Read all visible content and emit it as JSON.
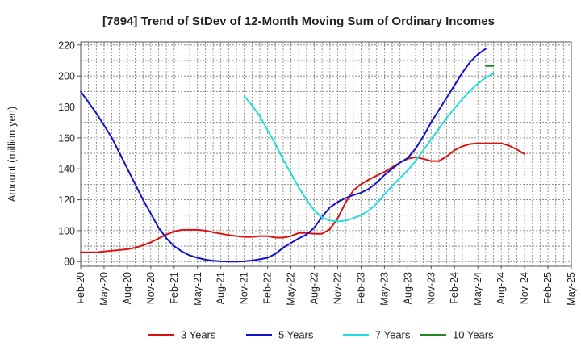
{
  "chart_data": {
    "type": "line",
    "title": "[7894]  Trend of StDev of 12-Month Moving Sum of Ordinary Incomes",
    "ylabel": "Amount (million yen)",
    "xlabel": "",
    "ylim": [
      77,
      222
    ],
    "yticks": [
      80,
      100,
      120,
      140,
      160,
      180,
      200,
      220
    ],
    "xticks": [
      "Feb-20",
      "May-20",
      "Aug-20",
      "Nov-20",
      "Feb-21",
      "May-21",
      "Aug-21",
      "Nov-21",
      "Feb-22",
      "May-22",
      "Aug-22",
      "Nov-22",
      "Feb-23",
      "May-23",
      "Aug-23",
      "Nov-23",
      "Feb-24",
      "May-24",
      "Aug-24",
      "Nov-24",
      "Feb-25",
      "May-25"
    ],
    "x_start": "Feb-20",
    "grid": true,
    "legend_position": "bottom",
    "series": [
      {
        "name": "3 Years",
        "color": "#dd1111",
        "points": [
          [
            0,
            86
          ],
          [
            1,
            86
          ],
          [
            2,
            86
          ],
          [
            3,
            86.5
          ],
          [
            4,
            87
          ],
          [
            5,
            87.5
          ],
          [
            6,
            88
          ],
          [
            7,
            89
          ],
          [
            8,
            90.5
          ],
          [
            9,
            92.5
          ],
          [
            10,
            95
          ],
          [
            11,
            97.5
          ],
          [
            12,
            99.5
          ],
          [
            13,
            100.5
          ],
          [
            14,
            100.5
          ],
          [
            15,
            100.5
          ],
          [
            16,
            100
          ],
          [
            17,
            99
          ],
          [
            18,
            98
          ],
          [
            19,
            97.2
          ],
          [
            20,
            96.5
          ],
          [
            21,
            96
          ],
          [
            22,
            96
          ],
          [
            23,
            96.5
          ],
          [
            24,
            96.5
          ],
          [
            25,
            95.5
          ],
          [
            26,
            95.5
          ],
          [
            27,
            96.5
          ],
          [
            28,
            98.5
          ],
          [
            29,
            98.5
          ],
          [
            30,
            98
          ],
          [
            31,
            98
          ],
          [
            32,
            101
          ],
          [
            33,
            108
          ],
          [
            34,
            118
          ],
          [
            35,
            126
          ],
          [
            36,
            130
          ],
          [
            37,
            133
          ],
          [
            38,
            135.5
          ],
          [
            39,
            138
          ],
          [
            40,
            141
          ],
          [
            41,
            144
          ],
          [
            42,
            146.5
          ],
          [
            43,
            147.5
          ],
          [
            44,
            146.5
          ],
          [
            45,
            145
          ],
          [
            46,
            145
          ],
          [
            47,
            148
          ],
          [
            48,
            152
          ],
          [
            49,
            154.5
          ],
          [
            50,
            156
          ],
          [
            51,
            156.5
          ],
          [
            52,
            156.5
          ],
          [
            53,
            156.5
          ],
          [
            54,
            156.5
          ],
          [
            55,
            155
          ],
          [
            56,
            152.5
          ],
          [
            57,
            149.5
          ]
        ]
      },
      {
        "name": "5 Years",
        "color": "#1111cc",
        "points": [
          [
            0,
            190
          ],
          [
            1,
            183
          ],
          [
            2,
            176
          ],
          [
            3,
            168
          ],
          [
            4,
            160
          ],
          [
            5,
            150
          ],
          [
            6,
            140
          ],
          [
            7,
            130
          ],
          [
            8,
            120
          ],
          [
            9,
            111
          ],
          [
            10,
            102
          ],
          [
            11,
            95
          ],
          [
            12,
            90
          ],
          [
            13,
            86.5
          ],
          [
            14,
            84
          ],
          [
            15,
            82.5
          ],
          [
            16,
            81.2
          ],
          [
            17,
            80.5
          ],
          [
            18,
            80.2
          ],
          [
            19,
            80
          ],
          [
            20,
            80
          ],
          [
            21,
            80.2
          ],
          [
            22,
            80.7
          ],
          [
            23,
            81.5
          ],
          [
            24,
            82.5
          ],
          [
            25,
            85
          ],
          [
            26,
            89
          ],
          [
            27,
            92
          ],
          [
            28,
            95
          ],
          [
            29,
            97.5
          ],
          [
            30,
            102
          ],
          [
            31,
            109
          ],
          [
            32,
            115
          ],
          [
            33,
            118.5
          ],
          [
            34,
            121
          ],
          [
            35,
            123
          ],
          [
            36,
            124.5
          ],
          [
            37,
            127
          ],
          [
            38,
            131
          ],
          [
            39,
            136
          ],
          [
            40,
            140
          ],
          [
            41,
            144
          ],
          [
            42,
            147
          ],
          [
            43,
            153
          ],
          [
            44,
            161
          ],
          [
            45,
            170
          ],
          [
            46,
            178
          ],
          [
            47,
            186
          ],
          [
            48,
            194
          ],
          [
            49,
            202
          ],
          [
            50,
            209
          ],
          [
            51,
            214
          ],
          [
            52,
            217.5
          ]
        ]
      },
      {
        "name": "7 Years",
        "color": "#22dddd",
        "points": [
          [
            21,
            187
          ],
          [
            22,
            181
          ],
          [
            23,
            174
          ],
          [
            24,
            165
          ],
          [
            25,
            156
          ],
          [
            26,
            146
          ],
          [
            27,
            137
          ],
          [
            28,
            128
          ],
          [
            29,
            120
          ],
          [
            30,
            113
          ],
          [
            31,
            108.5
          ],
          [
            32,
            106.5
          ],
          [
            33,
            106
          ],
          [
            34,
            106.5
          ],
          [
            35,
            108
          ],
          [
            36,
            110
          ],
          [
            37,
            113
          ],
          [
            38,
            117.5
          ],
          [
            39,
            123.5
          ],
          [
            40,
            129
          ],
          [
            41,
            134
          ],
          [
            42,
            139
          ],
          [
            43,
            145
          ],
          [
            44,
            152
          ],
          [
            45,
            159
          ],
          [
            46,
            166
          ],
          [
            47,
            173
          ],
          [
            48,
            179
          ],
          [
            49,
            185
          ],
          [
            50,
            190.5
          ],
          [
            51,
            195
          ],
          [
            52,
            199
          ],
          [
            53,
            201.5
          ]
        ]
      },
      {
        "name": "10 Years",
        "color": "#228822",
        "points": [
          [
            52,
            206.5
          ],
          [
            53,
            206.5
          ]
        ]
      }
    ]
  }
}
